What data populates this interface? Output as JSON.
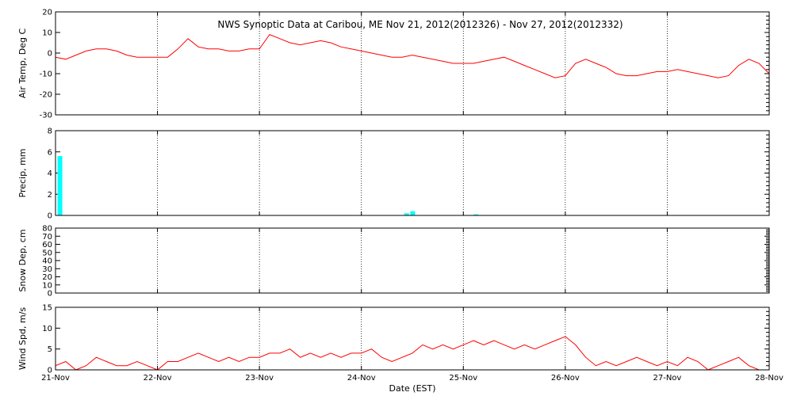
{
  "chart_data": {
    "type": "line",
    "title": "NWS Synoptic Data at Caribou, ME    Nov 21, 2012(2012326) - Nov 27, 2012(2012332)",
    "xlabel": "Date (EST)",
    "x_ticks": [
      "21-Nov",
      "22-Nov",
      "23-Nov",
      "24-Nov",
      "25-Nov",
      "26-Nov",
      "27-Nov",
      "28-Nov"
    ],
    "xlim_days": [
      0,
      7
    ],
    "colors": {
      "line": "#ff0000",
      "bar": "#00ffff"
    },
    "grid": true,
    "panels": [
      {
        "id": "temp",
        "type": "line",
        "ylabel": "Air Temp, Deg C",
        "ylim": [
          -30,
          20
        ],
        "yticks": [
          -30,
          -20,
          -10,
          0,
          10,
          20
        ],
        "x": [
          0.0,
          0.1,
          0.2,
          0.3,
          0.4,
          0.5,
          0.6,
          0.7,
          0.8,
          0.9,
          1.0,
          1.1,
          1.2,
          1.3,
          1.4,
          1.5,
          1.6,
          1.7,
          1.8,
          1.9,
          2.0,
          2.1,
          2.2,
          2.3,
          2.4,
          2.5,
          2.6,
          2.7,
          2.8,
          2.9,
          3.0,
          3.1,
          3.2,
          3.3,
          3.4,
          3.5,
          3.6,
          3.7,
          3.8,
          3.9,
          4.0,
          4.1,
          4.2,
          4.3,
          4.4,
          4.5,
          4.6,
          4.7,
          4.8,
          4.9,
          5.0,
          5.1,
          5.2,
          5.3,
          5.4,
          5.5,
          5.6,
          5.7,
          5.8,
          5.9,
          6.0,
          6.1,
          6.2,
          6.3,
          6.4,
          6.5,
          6.6,
          6.7,
          6.8,
          6.9,
          7.0
        ],
        "y": [
          -2,
          -3,
          -1,
          1,
          2,
          2,
          1,
          -1,
          -2,
          -2,
          -2,
          -2,
          2,
          7,
          3,
          2,
          2,
          1,
          1,
          2,
          2,
          9,
          7,
          5,
          4,
          5,
          6,
          5,
          3,
          2,
          1,
          0,
          -1,
          -2,
          -2,
          -1,
          -2,
          -3,
          -4,
          -5,
          -5,
          -5,
          -4,
          -3,
          -2,
          -4,
          -6,
          -8,
          -10,
          -12,
          -11,
          -5,
          -3,
          -5,
          -7,
          -10,
          -11,
          -11,
          -10,
          -9,
          -9,
          -8,
          -9,
          -10,
          -11,
          -12,
          -11,
          -6,
          -3,
          -5,
          -10
        ],
        "series": [
          {
            "name": ""
          }
        ]
      },
      {
        "id": "precip",
        "type": "bar",
        "ylabel": "Precip, mm",
        "ylim": [
          0,
          8
        ],
        "yticks": [
          0,
          2,
          4,
          6,
          8
        ],
        "x": [
          0.02,
          3.42,
          3.48,
          4.1
        ],
        "values": [
          5.6,
          0.2,
          0.4,
          0.1
        ]
      },
      {
        "id": "snow",
        "type": "line",
        "ylabel": "Snow Dep, cm",
        "ylim": [
          0,
          80
        ],
        "yticks": [
          0,
          10,
          20,
          30,
          40,
          50,
          60,
          70,
          80
        ],
        "x": [],
        "y": []
      },
      {
        "id": "wind",
        "type": "line",
        "ylabel": "Wind Spd, m/s",
        "ylim": [
          0,
          15
        ],
        "yticks": [
          0,
          5,
          10,
          15
        ],
        "x": [
          0.0,
          0.1,
          0.2,
          0.3,
          0.4,
          0.5,
          0.6,
          0.7,
          0.8,
          0.9,
          1.0,
          1.1,
          1.2,
          1.3,
          1.4,
          1.5,
          1.6,
          1.7,
          1.8,
          1.9,
          2.0,
          2.1,
          2.2,
          2.3,
          2.4,
          2.5,
          2.6,
          2.7,
          2.8,
          2.9,
          3.0,
          3.1,
          3.2,
          3.3,
          3.4,
          3.5,
          3.6,
          3.7,
          3.8,
          3.9,
          4.0,
          4.1,
          4.2,
          4.3,
          4.4,
          4.5,
          4.6,
          4.7,
          4.8,
          4.9,
          5.0,
          5.1,
          5.2,
          5.3,
          5.4,
          5.5,
          5.6,
          5.7,
          5.8,
          5.9,
          6.0,
          6.1,
          6.2,
          6.3,
          6.4,
          6.5,
          6.6,
          6.7,
          6.8,
          6.9,
          7.0
        ],
        "y": [
          1,
          2,
          0,
          1,
          3,
          2,
          1,
          1,
          2,
          1,
          0,
          2,
          2,
          3,
          4,
          3,
          2,
          3,
          2,
          3,
          3,
          4,
          4,
          5,
          3,
          4,
          3,
          4,
          3,
          4,
          4,
          5,
          3,
          2,
          3,
          4,
          6,
          5,
          6,
          5,
          6,
          7,
          6,
          7,
          6,
          5,
          6,
          5,
          6,
          7,
          8,
          6,
          3,
          1,
          2,
          1,
          2,
          3,
          2,
          1,
          2,
          1,
          3,
          2,
          0,
          1,
          2,
          3,
          1,
          0,
          0
        ],
        "series": [
          {
            "name": ""
          }
        ]
      }
    ]
  }
}
